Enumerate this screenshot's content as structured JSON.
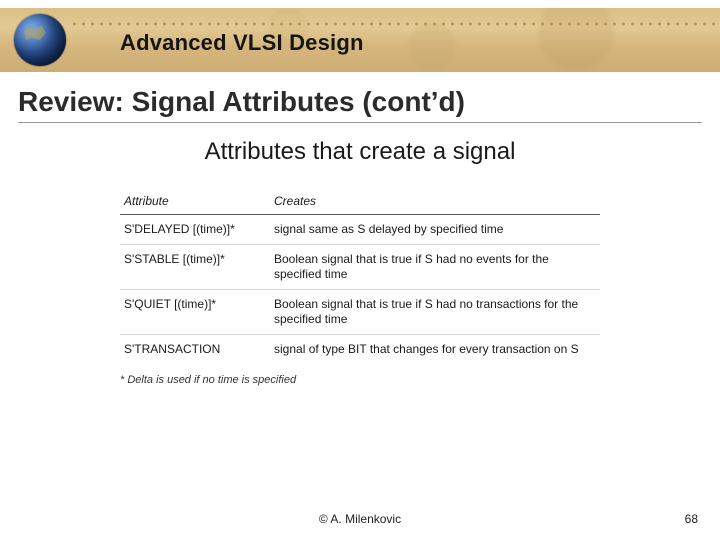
{
  "header": {
    "course_title": "Advanced VLSI Design",
    "band_gradient": [
      "#d7b97a",
      "#e0c48a",
      "#d2b072",
      "#c9a668"
    ],
    "dot_color": "#b38b3e",
    "globe_colors": [
      "#6fa0d8",
      "#2a4e8f",
      "#0d2a5a",
      "#071a3b"
    ]
  },
  "title": "Review: Signal Attributes (cont’d)",
  "subtitle": "Attributes that create a signal",
  "table": {
    "columns": [
      "Attribute",
      "Creates"
    ],
    "rows": [
      {
        "attribute": "S'DELAYED [(time)]*",
        "creates": "signal same as S delayed by specified time"
      },
      {
        "attribute": "S'STABLE [(time)]*",
        "creates": "Boolean signal that is true if S had no events for the specified time"
      },
      {
        "attribute": "S'QUIET [(time)]*",
        "creates": "Boolean signal that is true if S had no transactions for the specified time"
      },
      {
        "attribute": "S'TRANSACTION",
        "creates": "signal of type BIT that changes for every transaction on S"
      }
    ],
    "footnote": "* Delta is used if no time is specified",
    "header_border_color": "#555555",
    "row_border_color": "#d6d6d6",
    "font_size": 12
  },
  "footer": {
    "copyright": "© A. Milenkovic",
    "page_number": "68"
  }
}
